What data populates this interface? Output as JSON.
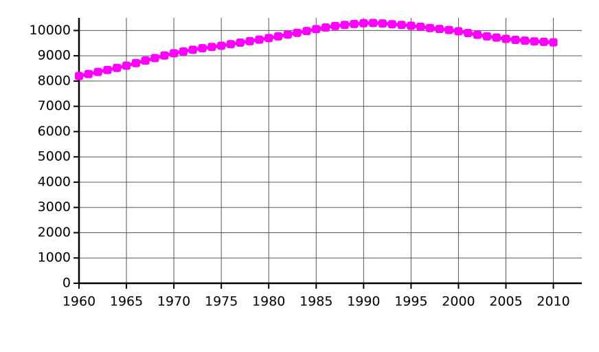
{
  "chart_data": {
    "type": "line",
    "x": [
      1960,
      1961,
      1962,
      1963,
      1964,
      1965,
      1966,
      1967,
      1968,
      1969,
      1970,
      1971,
      1972,
      1973,
      1974,
      1975,
      1976,
      1977,
      1978,
      1979,
      1980,
      1981,
      1982,
      1983,
      1984,
      1985,
      1986,
      1987,
      1988,
      1989,
      1990,
      1991,
      1992,
      1993,
      1994,
      1995,
      1996,
      1997,
      1998,
      1999,
      2000,
      2001,
      2002,
      2003,
      2004,
      2005,
      2006,
      2007,
      2008,
      2009,
      2010
    ],
    "series": [
      {
        "color": "#ff00ff",
        "values": [
          8200,
          8280,
          8360,
          8440,
          8520,
          8610,
          8710,
          8810,
          8910,
          9010,
          9100,
          9170,
          9240,
          9300,
          9350,
          9400,
          9460,
          9520,
          9580,
          9640,
          9700,
          9770,
          9840,
          9910,
          9980,
          10055,
          10120,
          10180,
          10220,
          10260,
          10290,
          10300,
          10280,
          10250,
          10220,
          10190,
          10150,
          10100,
          10060,
          10020,
          9970,
          9900,
          9830,
          9770,
          9720,
          9670,
          9630,
          9600,
          9570,
          9550,
          9530
        ]
      }
    ],
    "xlim": [
      1960,
      2013
    ],
    "xticks": [
      1960,
      1965,
      1970,
      1975,
      1980,
      1985,
      1990,
      1995,
      2000,
      2005,
      2010
    ],
    "ylim": [
      0,
      10500
    ],
    "yticks": [
      0,
      1000,
      2000,
      3000,
      4000,
      5000,
      6000,
      7000,
      8000,
      9000,
      10000
    ],
    "grid": true
  }
}
